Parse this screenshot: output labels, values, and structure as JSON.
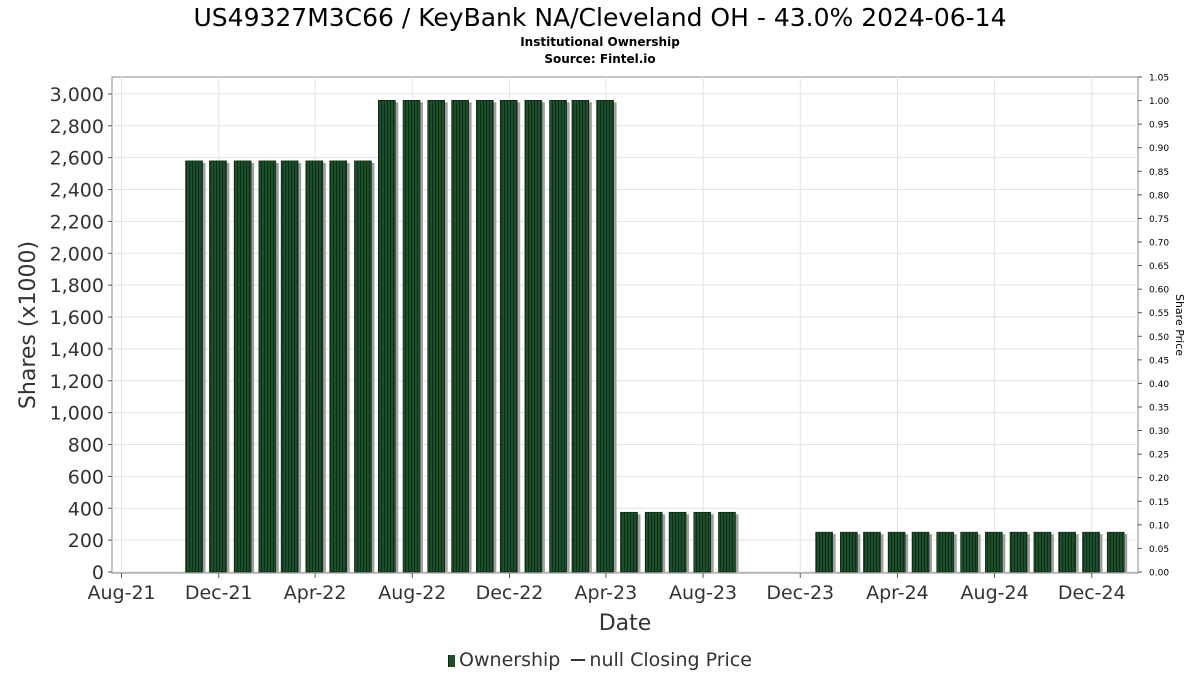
{
  "title": "US49327M3C66 / KeyBank NA/Cleveland OH - 43.0% 2024-06-14",
  "subtitle": "Institutional Ownership",
  "source": "Source: Fintel.io",
  "legend": {
    "ownership": "Ownership",
    "closing_price": "null Closing Price"
  },
  "colors": {
    "bar": "#1d4d2a",
    "bar_shadow": "#a0a0a0",
    "grid": "#e2e2e2",
    "plot_border": "#888888"
  },
  "chart_data": {
    "type": "bar",
    "xlabel": "Date",
    "ylabel": "Shares (x1000)",
    "y2label": "Share Price",
    "ylim": [
      0,
      3100
    ],
    "y2lim": [
      0,
      1.05
    ],
    "x_range": [
      "2021-07-20",
      "2025-01-28"
    ],
    "y_ticks": [
      "0",
      "200",
      "400",
      "600",
      "800",
      "1,000",
      "1,200",
      "1,400",
      "1,600",
      "1,800",
      "2,000",
      "2,200",
      "2,400",
      "2,600",
      "2,800",
      "3,000"
    ],
    "y2_ticks": [
      "0.00",
      "0.05",
      "0.10",
      "0.15",
      "0.20",
      "0.25",
      "0.30",
      "0.35",
      "0.40",
      "0.45",
      "0.50",
      "0.55",
      "0.60",
      "0.65",
      "0.70",
      "0.75",
      "0.80",
      "0.85",
      "0.90",
      "0.95",
      "1.00",
      "1.05"
    ],
    "x_ticks": [
      {
        "label": "Aug-21",
        "date": "2021-08-01"
      },
      {
        "label": "Dec-21",
        "date": "2021-12-01"
      },
      {
        "label": "Apr-22",
        "date": "2022-04-01"
      },
      {
        "label": "Aug-22",
        "date": "2022-08-01"
      },
      {
        "label": "Dec-22",
        "date": "2022-12-01"
      },
      {
        "label": "Apr-23",
        "date": "2023-04-01"
      },
      {
        "label": "Aug-23",
        "date": "2023-08-01"
      },
      {
        "label": "Dec-23",
        "date": "2023-12-01"
      },
      {
        "label": "Apr-24",
        "date": "2024-04-01"
      },
      {
        "label": "Aug-24",
        "date": "2024-08-01"
      },
      {
        "label": "Dec-24",
        "date": "2024-12-01"
      }
    ],
    "series": [
      {
        "name": "Ownership",
        "points": [
          {
            "date": "2021-10-31",
            "value": 2580
          },
          {
            "date": "2021-11-30",
            "value": 2580
          },
          {
            "date": "2021-12-31",
            "value": 2580
          },
          {
            "date": "2022-01-31",
            "value": 2580
          },
          {
            "date": "2022-02-28",
            "value": 2580
          },
          {
            "date": "2022-03-31",
            "value": 2580
          },
          {
            "date": "2022-04-30",
            "value": 2580
          },
          {
            "date": "2022-05-31",
            "value": 2580
          },
          {
            "date": "2022-06-30",
            "value": 2960
          },
          {
            "date": "2022-07-31",
            "value": 2960
          },
          {
            "date": "2022-08-31",
            "value": 2960
          },
          {
            "date": "2022-09-30",
            "value": 2960
          },
          {
            "date": "2022-10-31",
            "value": 2960
          },
          {
            "date": "2022-11-30",
            "value": 2960
          },
          {
            "date": "2022-12-31",
            "value": 2960
          },
          {
            "date": "2023-01-31",
            "value": 2960
          },
          {
            "date": "2023-02-28",
            "value": 2960
          },
          {
            "date": "2023-03-31",
            "value": 2960
          },
          {
            "date": "2023-04-30",
            "value": 375
          },
          {
            "date": "2023-05-31",
            "value": 375
          },
          {
            "date": "2023-06-30",
            "value": 375
          },
          {
            "date": "2023-07-31",
            "value": 375
          },
          {
            "date": "2023-08-31",
            "value": 375
          },
          {
            "date": "2023-12-31",
            "value": 250
          },
          {
            "date": "2024-01-31",
            "value": 250
          },
          {
            "date": "2024-02-29",
            "value": 250
          },
          {
            "date": "2024-03-31",
            "value": 250
          },
          {
            "date": "2024-04-30",
            "value": 250
          },
          {
            "date": "2024-05-31",
            "value": 250
          },
          {
            "date": "2024-06-30",
            "value": 250
          },
          {
            "date": "2024-07-31",
            "value": 250
          },
          {
            "date": "2024-08-31",
            "value": 250
          },
          {
            "date": "2024-09-30",
            "value": 250
          },
          {
            "date": "2024-10-31",
            "value": 250
          },
          {
            "date": "2024-11-30",
            "value": 250
          },
          {
            "date": "2024-12-31",
            "value": 250
          }
        ]
      }
    ],
    "grid": true,
    "legend_position": "bottom-center"
  }
}
